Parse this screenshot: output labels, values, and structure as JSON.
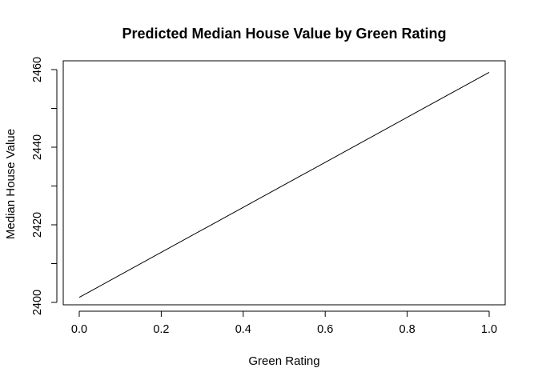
{
  "chart_data": {
    "type": "line",
    "title": "Predicted Median House Value by Green Rating",
    "xlabel": "Green Rating",
    "ylabel": "Median House Value",
    "xlim": [
      0.0,
      1.0
    ],
    "ylim": [
      2400,
      2460
    ],
    "x_ticks": [
      0.0,
      0.2,
      0.4,
      0.6,
      0.8,
      1.0
    ],
    "x_tick_labels": [
      "0.0",
      "0.2",
      "0.4",
      "0.6",
      "0.8",
      "1.0"
    ],
    "y_ticks": [
      2400,
      2420,
      2440,
      2460
    ],
    "y_tick_labels": [
      "2400",
      "2420",
      "2440",
      "2460"
    ],
    "grid": false,
    "legend": "none",
    "series": [
      {
        "x": [
          0.0,
          1.0
        ],
        "values": [
          2401.3,
          2459.3
        ],
        "color": "#000000"
      }
    ]
  }
}
